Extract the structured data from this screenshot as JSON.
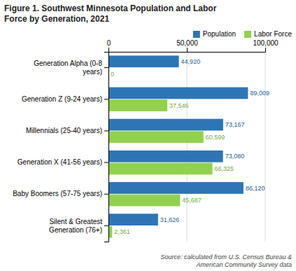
{
  "chart_data": {
    "type": "bar",
    "orientation": "horizontal",
    "title": "Figure 1.  Southwest Minnesota Population and Labor\nForce by Generation, 2021",
    "categories": [
      "Generation Alpha (0-8\nyears)",
      "Generation Z (9-24 years)",
      "Millennials (25-40 years)",
      "Generation X (41-56 years)",
      "Baby Boomers (57-75 years)",
      "Silent & Greatest\nGeneration (76+)"
    ],
    "series": [
      {
        "name": "Population",
        "color": "#2E75B6",
        "values": [
          44920,
          89009,
          73167,
          73080,
          86120,
          31626
        ],
        "value_labels": [
          "44,920",
          "89,009",
          "73,167",
          "73,080",
          "86,120",
          "31,626"
        ]
      },
      {
        "name": "Labor Force",
        "color": "#92D050",
        "values": [
          0,
          37546,
          60599,
          66325,
          45687,
          2361
        ],
        "value_labels": [
          "0",
          "37,546",
          "60,599",
          "66,325",
          "45,687",
          "2,361"
        ]
      }
    ],
    "xlim": [
      0,
      100000
    ],
    "xticks": [
      0,
      {
        "value": 50000,
        "label": "50,000"
      },
      {
        "value": 100000,
        "label": "100,000"
      }
    ],
    "grid": true,
    "legend": "top-right",
    "data_labels": true,
    "annotations": [
      "Source: calculated from U.S. Census Bureau &\nAmerican Community Survey data"
    ]
  }
}
